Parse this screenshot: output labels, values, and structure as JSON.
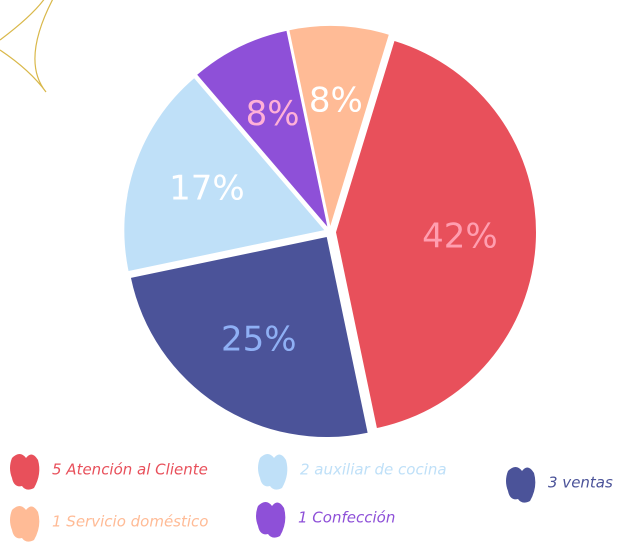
{
  "chart_data": {
    "type": "pie",
    "categories": [
      "5 Atención al Cliente",
      "3 ventas",
      "2 auxiliar de cocina",
      "1 Confección",
      "1 Servicio doméstico"
    ],
    "values": [
      42,
      25,
      17,
      8,
      8
    ],
    "value_labels": [
      "42%",
      "25%",
      "17%",
      "8%",
      "8%"
    ],
    "colors": [
      "#e8505b",
      "#4b5399",
      "#bfe0f8",
      "#8e50d8",
      "#ffbb96"
    ],
    "label_colors": [
      "#ff9eb0",
      "#8fb0f5",
      "#ffffff",
      "#ffb0d8",
      "#ffffff"
    ]
  }
}
